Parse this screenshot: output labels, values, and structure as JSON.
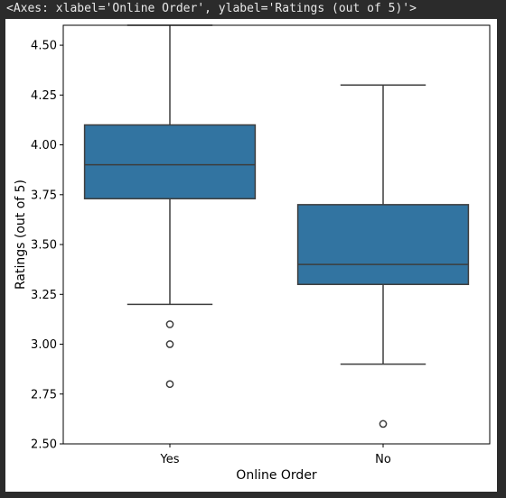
{
  "output_repr": "<Axes: xlabel='Online Order', ylabel='Ratings (out of 5)'>",
  "colors": {
    "box_fill": "#3274a1",
    "line": "#3d3d3d",
    "outlier_edge": "#3d3d3d",
    "background": "#2b2b2b",
    "plot_bg": "#ffffff"
  },
  "chart_data": {
    "type": "box",
    "title": "",
    "xlabel": "Online Order",
    "ylabel": "Ratings (out of 5)",
    "ylim": [
      2.5,
      4.6
    ],
    "yticks": [
      2.5,
      2.75,
      3.0,
      3.25,
      3.5,
      3.75,
      4.0,
      4.25,
      4.5
    ],
    "ytick_labels": [
      "2.50",
      "2.75",
      "3.00",
      "3.25",
      "3.50",
      "3.75",
      "4.00",
      "4.25",
      "4.50"
    ],
    "grid": false,
    "categories": [
      "Yes",
      "No"
    ],
    "boxes": [
      {
        "category": "Yes",
        "whisker_low": 3.2,
        "q1": 3.73,
        "median": 3.9,
        "q3": 4.1,
        "whisker_high": 4.6,
        "outliers": [
          3.1,
          3.0,
          2.8
        ]
      },
      {
        "category": "No",
        "whisker_low": 2.9,
        "q1": 3.3,
        "median": 3.4,
        "q3": 3.7,
        "whisker_high": 4.3,
        "outliers": [
          2.6
        ]
      }
    ]
  }
}
